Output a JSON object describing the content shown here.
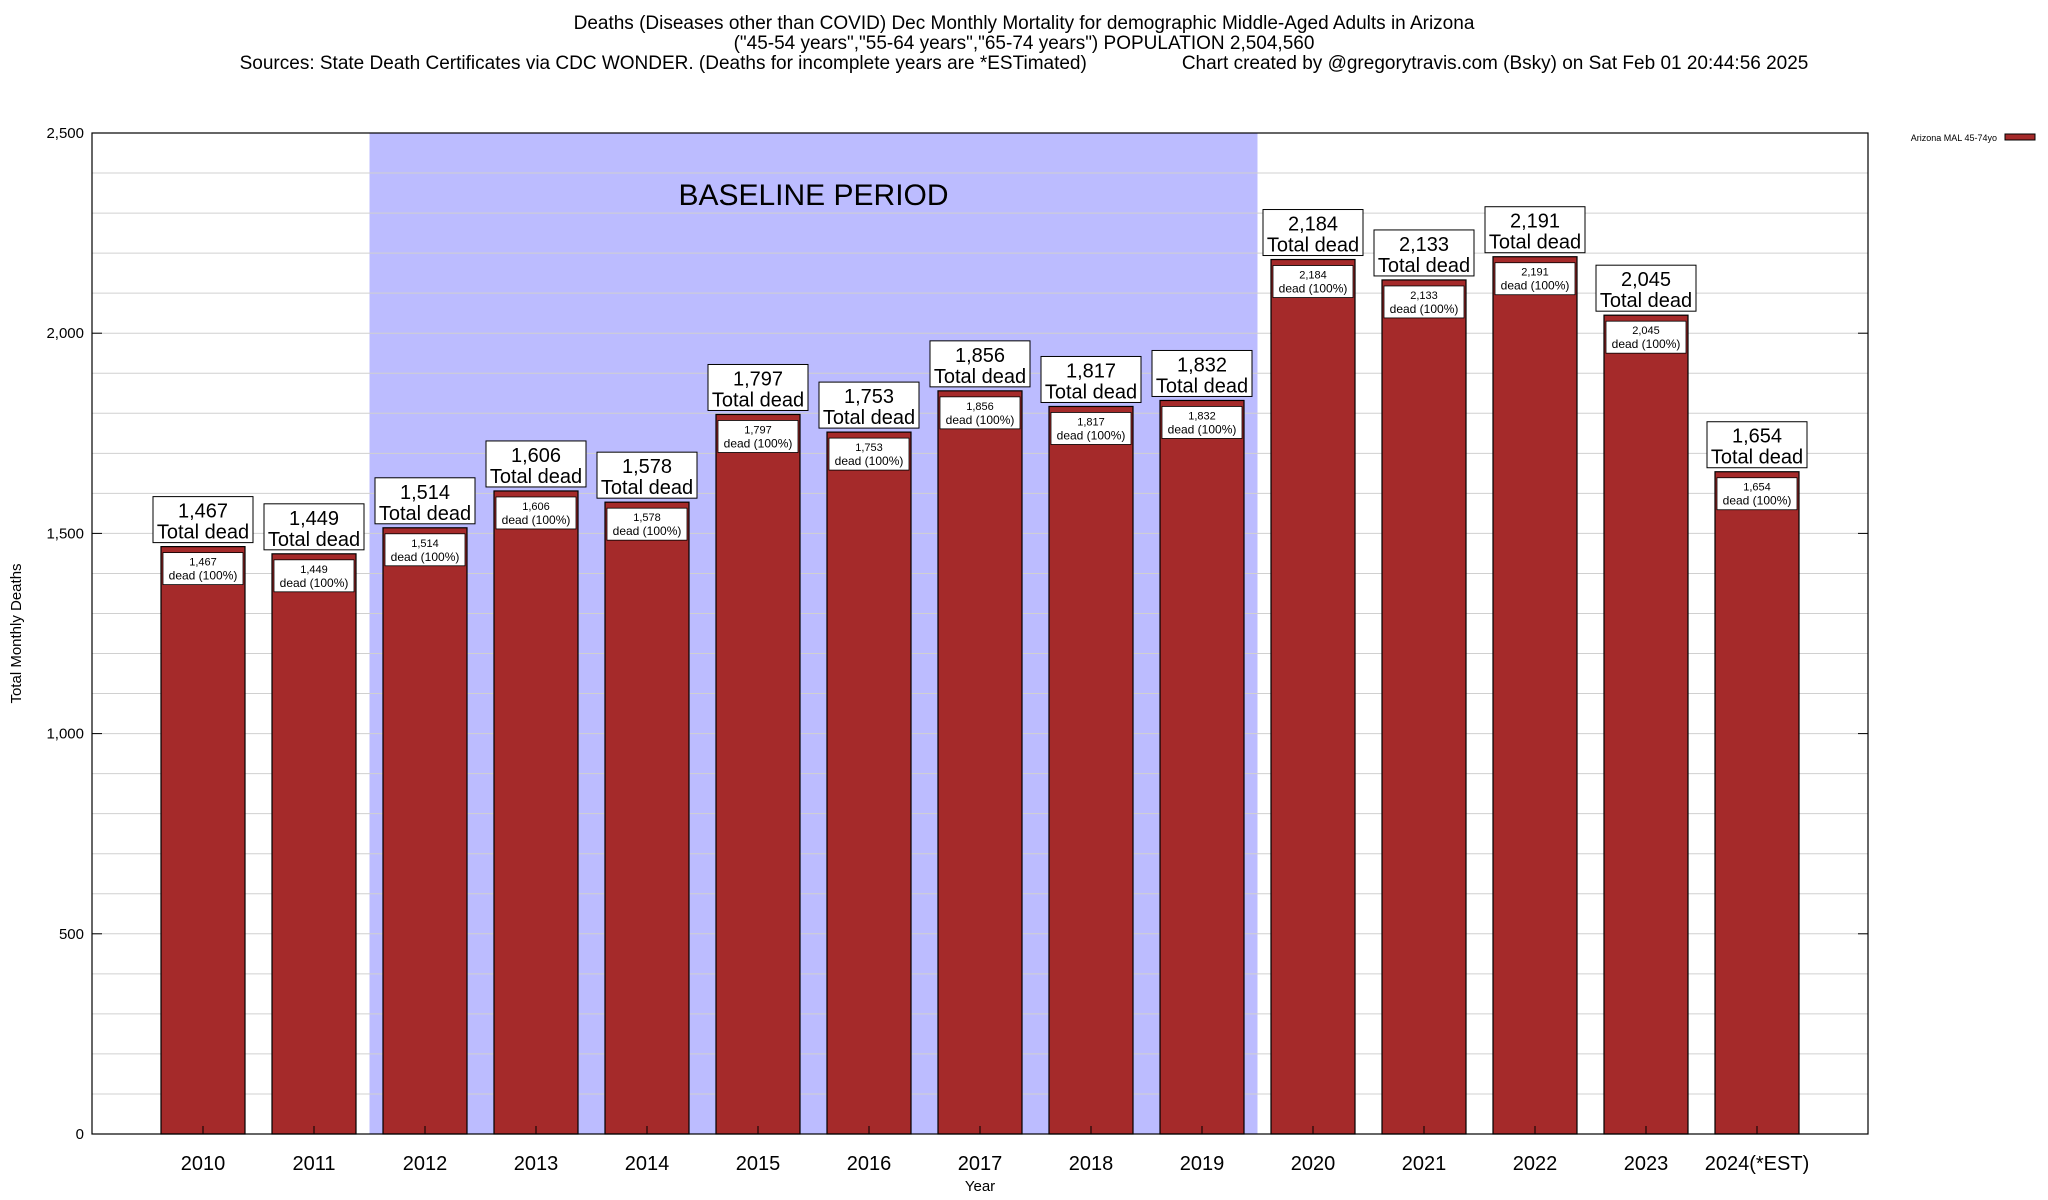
{
  "header": {
    "title": "Deaths (Diseases other than COVID) Dec Monthly Mortality for demographic Middle-Aged Adults in Arizona",
    "subtitle": "(\"45-54 years\",\"55-64 years\",\"65-74 years\") POPULATION 2,504,560",
    "sources": "Sources: State Death Certificates via CDC WONDER. (Deaths for incomplete years are *ESTimated)",
    "credit": "Chart created by @gregorytravis.com (Bsky) on Sat Feb 01 20:44:56 2025"
  },
  "chart_data": {
    "type": "bar",
    "xlabel": "Year",
    "ylabel": "Total Monthly Deaths",
    "ylim": [
      0,
      2500
    ],
    "yticks": [
      0,
      500,
      1000,
      1500,
      2000,
      2500
    ],
    "ytick_labels": [
      "0",
      "500",
      "1,000",
      "1,500",
      "2,000",
      "2,500"
    ],
    "grid": true,
    "legend": {
      "placement": "top-right",
      "entries": [
        "Arizona MAL 45-74yo"
      ]
    },
    "categories": [
      "2010",
      "2011",
      "2012",
      "2013",
      "2014",
      "2015",
      "2016",
      "2017",
      "2018",
      "2019",
      "2020",
      "2021",
      "2022",
      "2023",
      "2024(*EST)"
    ],
    "series": [
      {
        "name": "Arizona MAL 45-74yo",
        "values": [
          1467,
          1449,
          1514,
          1606,
          1578,
          1797,
          1753,
          1856,
          1817,
          1832,
          2184,
          2133,
          2191,
          2045,
          1654
        ]
      }
    ],
    "top_labels": [
      "1,467",
      "1,449",
      "1,514",
      "1,606",
      "1,578",
      "1,797",
      "1,753",
      "1,856",
      "1,817",
      "1,832",
      "2,184",
      "2,133",
      "2,191",
      "2,045",
      "1,654"
    ],
    "top_label_suffix": "Total dead",
    "inner_label_suffix": "dead (100%)",
    "annotation": {
      "text": "BASELINE PERIOD",
      "from_category": "2012",
      "to_category": "2019"
    },
    "colors": {
      "bar": "#a52a2a",
      "baseline": "#bcbcff",
      "grid": "#d0d0d0"
    }
  }
}
